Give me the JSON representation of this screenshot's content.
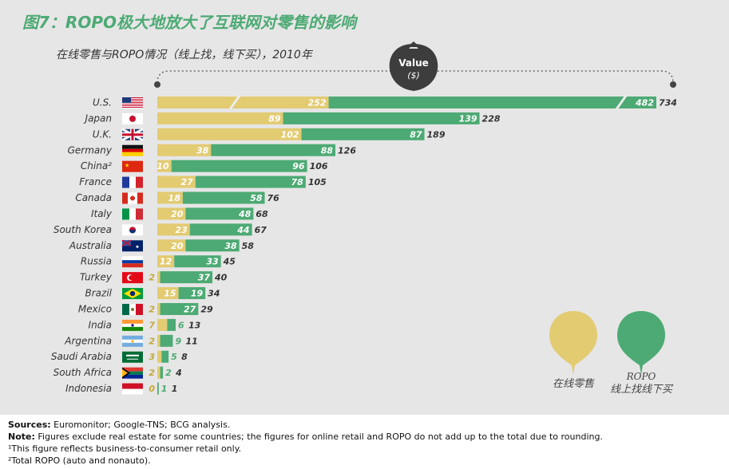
{
  "header": {
    "title": "图7：ROPO极大地放大了互联网对零售的影响",
    "subtitle": "在线零售与ROPO情况（线上找，线下买），2010年"
  },
  "colors": {
    "online": "#e3cb72",
    "ropo": "#4daa74",
    "title": "#4daa74"
  },
  "value_badge": {
    "line1": "Value",
    "line2": "($)"
  },
  "legend": {
    "online_label": "在线零售",
    "ropo_label_1": "ROPO",
    "ropo_label_2": "线上找线下买"
  },
  "chart_data": {
    "type": "bar",
    "orientation": "horizontal",
    "stacked": true,
    "title": "图7：ROPO极大地放大了互联网对零售的影响",
    "subtitle": "在线零售与ROPO情况（线上找，线下买），2010年",
    "value_label": "Value ($)",
    "categories": [
      "U.S.",
      "Japan",
      "U.K.",
      "Germany",
      "China²",
      "France",
      "Canada",
      "Italy",
      "South Korea",
      "Australia",
      "Russia",
      "Turkey",
      "Brazil",
      "Mexico",
      "India",
      "Argentina",
      "Saudi Arabia",
      "South Africa",
      "Indonesia"
    ],
    "series": [
      {
        "name": "在线零售",
        "values": [
          252,
          89,
          102,
          38,
          10,
          27,
          18,
          20,
          23,
          20,
          12,
          2,
          15,
          2,
          7,
          2,
          3,
          2,
          0
        ]
      },
      {
        "name": "ROPO",
        "values": [
          482,
          139,
          87,
          88,
          96,
          78,
          58,
          48,
          44,
          38,
          33,
          37,
          19,
          27,
          6,
          9,
          5,
          2,
          1
        ]
      }
    ],
    "totals": [
      734,
      228,
      189,
      126,
      106,
      105,
      76,
      68,
      67,
      58,
      45,
      40,
      34,
      29,
      13,
      11,
      8,
      4,
      1
    ],
    "axis_break_on": "U.S.",
    "legend_position": "right"
  },
  "footer": {
    "sources_label": "Sources:",
    "sources_text": "Euromonitor; Google-TNS; BCG analysis.",
    "note_label": "Note:",
    "note_text": "Figures exclude real estate for some countries; the figures for online retail and ROPO do not add up to the total due to rounding.",
    "footnote1": "¹This figure reflects business-to-consumer retail only.",
    "footnote2": "²Total ROPO (auto and nonauto)."
  }
}
